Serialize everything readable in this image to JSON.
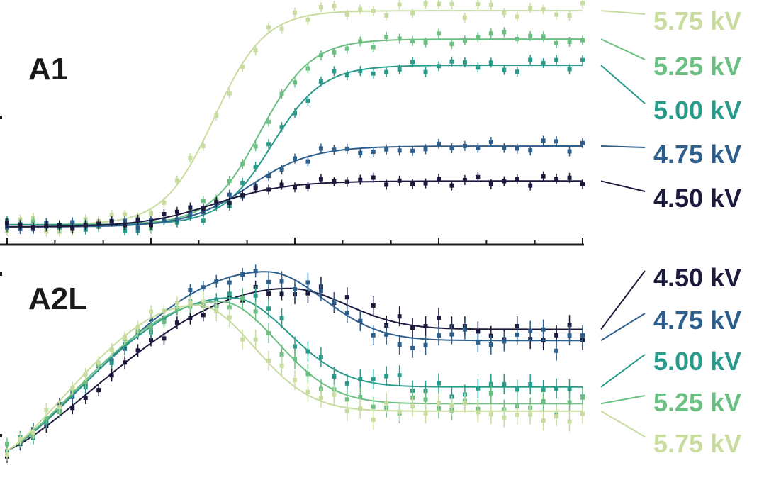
{
  "chart_data": [
    {
      "type": "scatter",
      "panel_label": "A1",
      "xlabel": "",
      "ylabel": "",
      "x_tick_labels": [],
      "y_tick_labels": [],
      "xlim": [
        0,
        1
      ],
      "ylim": [
        0,
        1
      ],
      "grid": false,
      "x_ticks": [
        0,
        0.083,
        0.167,
        0.25,
        0.333,
        0.417,
        0.5,
        0.583,
        0.667,
        0.75,
        0.833,
        0.917,
        1.0
      ],
      "series": [
        {
          "name": "5.75 kV",
          "color": "#c9dca0",
          "fit": {
            "x0": 0.36,
            "w": 0.105,
            "base": 0.01,
            "plateau": 0.99
          }
        },
        {
          "name": "5.25 kV",
          "color": "#6cbf82",
          "fit": {
            "x0": 0.44,
            "w": 0.105,
            "base": 0.01,
            "plateau": 0.86
          }
        },
        {
          "name": "5.00 kV",
          "color": "#2a9a8a",
          "fit": {
            "x0": 0.46,
            "w": 0.105,
            "base": 0.01,
            "plateau": 0.74
          }
        },
        {
          "name": "4.75 kV",
          "color": "#2e5f8c",
          "fit": {
            "x0": 0.42,
            "w": 0.13,
            "base": 0.0,
            "plateau": 0.37
          }
        },
        {
          "name": "4.50 kV",
          "color": "#1c1a3c",
          "fit": {
            "x0": 0.36,
            "w": 0.15,
            "base": 0.0,
            "plateau": 0.21
          }
        }
      ]
    },
    {
      "type": "scatter",
      "panel_label": "A2L",
      "xlabel": "",
      "ylabel": "",
      "x_tick_labels": [],
      "y_tick_labels": [],
      "xlim": [
        0,
        1
      ],
      "ylim": [
        0,
        1
      ],
      "grid": false,
      "series": [
        {
          "name": "4.50 kV",
          "color": "#1c1a3c",
          "fit": {
            "peak_x": 0.49,
            "peak_y": 0.89,
            "plateau": 0.67
          }
        },
        {
          "name": "4.75 kV",
          "color": "#2e5f8c",
          "fit": {
            "peak_x": 0.45,
            "peak_y": 0.98,
            "plateau": 0.61
          }
        },
        {
          "name": "5.00 kV",
          "color": "#2a9a8a",
          "fit": {
            "peak_x": 0.39,
            "peak_y": 0.84,
            "plateau": 0.36
          }
        },
        {
          "name": "5.25 kV",
          "color": "#6cbf82",
          "fit": {
            "peak_x": 0.37,
            "peak_y": 0.82,
            "plateau": 0.27
          }
        },
        {
          "name": "5.75 kV",
          "color": "#c9dca0",
          "fit": {
            "peak_x": 0.33,
            "peak_y": 0.8,
            "plateau": 0.23
          }
        }
      ]
    }
  ]
}
